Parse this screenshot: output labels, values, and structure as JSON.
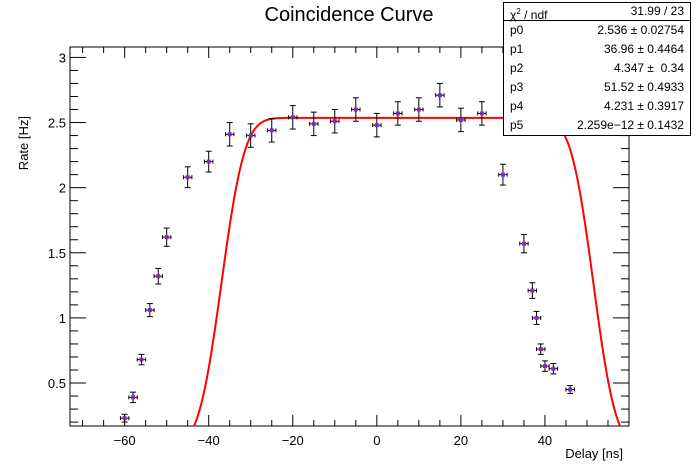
{
  "chart_data": {
    "type": "scatter",
    "title": "Coincidence Curve",
    "xlabel": "Delay [ns]",
    "ylabel": "Rate [Hz]",
    "xlim": [
      -73,
      60
    ],
    "ylim": [
      0.17,
      3.08
    ],
    "x_ticks": [
      -60,
      -40,
      -20,
      0,
      20,
      40
    ],
    "x_tick_labels": [
      "−60",
      "−40",
      "−20",
      "0",
      "20",
      "40"
    ],
    "y_ticks": [
      0.5,
      1,
      1.5,
      2,
      2.5,
      3
    ],
    "y_tick_labels": [
      "0.5",
      "1",
      "1.5",
      "2",
      "2.5",
      "3"
    ],
    "grid": false,
    "series": [
      {
        "points": [
          {
            "x": -60,
            "y": 0.23,
            "yerr": 0.03,
            "xerr": 1
          },
          {
            "x": -58,
            "y": 0.39,
            "yerr": 0.04,
            "xerr": 1
          },
          {
            "x": -56,
            "y": 0.68,
            "yerr": 0.04,
            "xerr": 1
          },
          {
            "x": -54,
            "y": 1.06,
            "yerr": 0.05,
            "xerr": 1
          },
          {
            "x": -52,
            "y": 1.32,
            "yerr": 0.06,
            "xerr": 1
          },
          {
            "x": -50,
            "y": 1.62,
            "yerr": 0.07,
            "xerr": 1
          },
          {
            "x": -45,
            "y": 2.08,
            "yerr": 0.08,
            "xerr": 1
          },
          {
            "x": -40,
            "y": 2.2,
            "yerr": 0.08,
            "xerr": 1
          },
          {
            "x": -35,
            "y": 2.41,
            "yerr": 0.09,
            "xerr": 1
          },
          {
            "x": -30,
            "y": 2.4,
            "yerr": 0.09,
            "xerr": 1
          },
          {
            "x": -25,
            "y": 2.44,
            "yerr": 0.09,
            "xerr": 1
          },
          {
            "x": -20,
            "y": 2.54,
            "yerr": 0.09,
            "xerr": 1
          },
          {
            "x": -15,
            "y": 2.49,
            "yerr": 0.09,
            "xerr": 1
          },
          {
            "x": -10,
            "y": 2.51,
            "yerr": 0.09,
            "xerr": 1
          },
          {
            "x": -5,
            "y": 2.6,
            "yerr": 0.09,
            "xerr": 1
          },
          {
            "x": 0,
            "y": 2.48,
            "yerr": 0.09,
            "xerr": 1
          },
          {
            "x": 5,
            "y": 2.57,
            "yerr": 0.09,
            "xerr": 1
          },
          {
            "x": 10,
            "y": 2.6,
            "yerr": 0.09,
            "xerr": 1
          },
          {
            "x": 15,
            "y": 2.71,
            "yerr": 0.09,
            "xerr": 1
          },
          {
            "x": 20,
            "y": 2.52,
            "yerr": 0.09,
            "xerr": 1
          },
          {
            "x": 25,
            "y": 2.57,
            "yerr": 0.09,
            "xerr": 1
          },
          {
            "x": 30,
            "y": 2.1,
            "yerr": 0.08,
            "xerr": 1
          },
          {
            "x": 35,
            "y": 1.57,
            "yerr": 0.07,
            "xerr": 1
          },
          {
            "x": 37,
            "y": 1.21,
            "yerr": 0.06,
            "xerr": 1
          },
          {
            "x": 38,
            "y": 1.0,
            "yerr": 0.05,
            "xerr": 1
          },
          {
            "x": 39,
            "y": 0.76,
            "yerr": 0.04,
            "xerr": 1
          },
          {
            "x": 40,
            "y": 0.63,
            "yerr": 0.04,
            "xerr": 1
          },
          {
            "x": 42,
            "y": 0.61,
            "yerr": 0.04,
            "xerr": 1
          },
          {
            "x": 46,
            "y": 0.45,
            "yerr": 0.03,
            "xerr": 1
          }
        ]
      }
    ],
    "fit": {
      "p0": 2.536,
      "p1": 36.96,
      "p2": 4.347,
      "p3": 51.52,
      "p4": 4.231,
      "p5": 0
    },
    "stats": {
      "header_label": "/ ndf",
      "header_chi": "χ",
      "header_sup": "2",
      "header_value": "31.99 / 23",
      "rows": [
        {
          "label": "p0",
          "value": "2.536 ± 0.02754"
        },
        {
          "label": "p1",
          "value": "36.96 ± 0.4464"
        },
        {
          "label": "p2",
          "value": "4.347 ±  0.34"
        },
        {
          "label": "p3",
          "value": "51.52 ± 0.4933"
        },
        {
          "label": "p4",
          "value": "4.231 ± 0.3917"
        },
        {
          "label": "p5",
          "value": "2.259e−12 ± 0.1432"
        }
      ]
    },
    "colors": {
      "fit_line": "#ff0000",
      "marker": "#7b2cbf",
      "errorbar": "#000000",
      "axis": "#000000"
    }
  }
}
